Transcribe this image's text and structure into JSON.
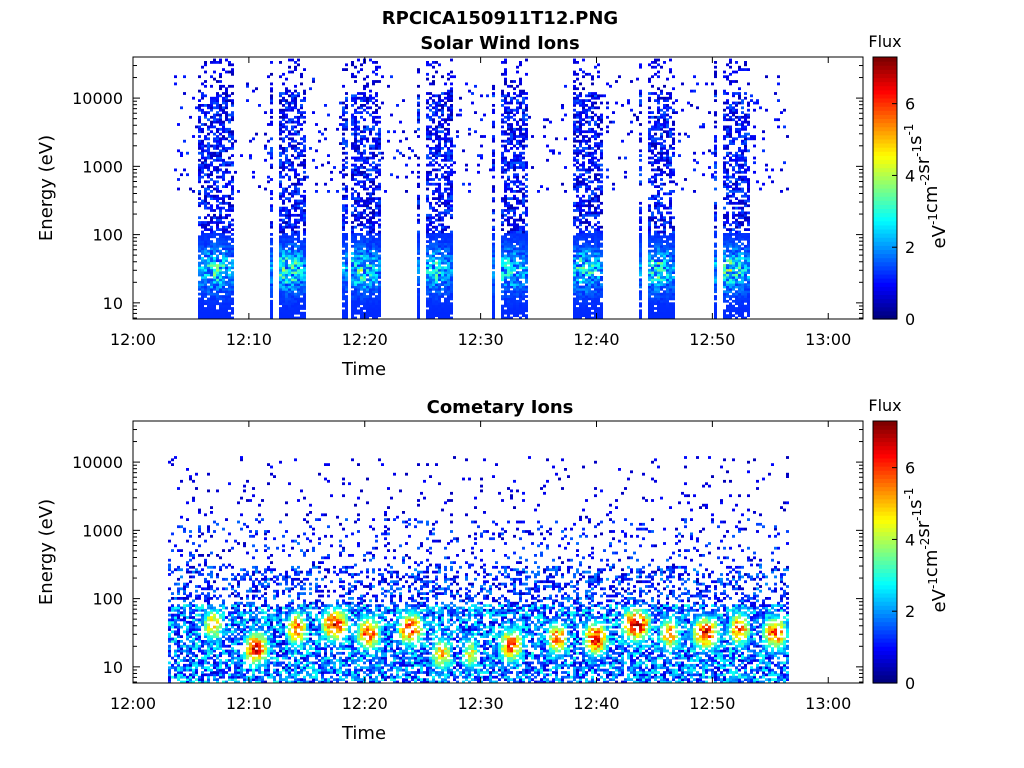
{
  "figure_title": "RPCICA150911T12.PNG",
  "colorbar": {
    "title": "Flux",
    "unit_parts": [
      [
        "eV",
        "-1"
      ],
      [
        "cm",
        "-2"
      ],
      [
        "sr",
        "-1"
      ],
      [
        "s",
        "-1"
      ]
    ],
    "range": [
      0,
      7.3
    ],
    "ticks": [
      "0",
      "2",
      "4",
      "6"
    ],
    "colormap": "jet"
  },
  "chart_data": [
    {
      "type": "heatmap",
      "title": "Solar Wind Ions",
      "xlabel": "Time",
      "ylabel": "Energy (eV)",
      "x_ticks": [
        "12:00",
        "12:10",
        "12:20",
        "12:30",
        "12:40",
        "12:50",
        "13:00"
      ],
      "y_ticks": [
        "10",
        "100",
        "1000",
        "10000"
      ],
      "y_scale": "log",
      "xlim_minutes_after_12": [
        0,
        63
      ],
      "ylim_eV": [
        5.8,
        40000
      ],
      "scan_gaps_minutes": [
        [
          12.0,
          12.4
        ],
        [
          18.3,
          18.8
        ],
        [
          24.6,
          25.1
        ],
        [
          31.0,
          31.5
        ],
        [
          37.4,
          37.9
        ],
        [
          43.8,
          44.3
        ],
        [
          50.3,
          50.8
        ]
      ],
      "bursts": [
        {
          "center": 7.0,
          "half_width": 1.6,
          "peak_energy": 30,
          "peak_flux": 4.5
        },
        {
          "center": 13.3,
          "half_width": 1.6,
          "peak_energy": 30,
          "peak_flux": 4.8
        },
        {
          "center": 19.6,
          "half_width": 1.6,
          "peak_energy": 30,
          "peak_flux": 4.5
        },
        {
          "center": 26.0,
          "half_width": 1.6,
          "peak_energy": 30,
          "peak_flux": 4.0
        },
        {
          "center": 32.4,
          "half_width": 1.6,
          "peak_energy": 30,
          "peak_flux": 4.2
        },
        {
          "center": 38.8,
          "half_width": 1.6,
          "peak_energy": 30,
          "peak_flux": 4.5
        },
        {
          "center": 45.1,
          "half_width": 1.6,
          "peak_energy": 30,
          "peak_flux": 4.5
        },
        {
          "center": 51.5,
          "half_width": 1.6,
          "peak_energy": 30,
          "peak_flux": 4.8
        }
      ]
    },
    {
      "type": "heatmap",
      "title": "Cometary Ions",
      "xlabel": "Time",
      "ylabel": "Energy (eV)",
      "x_ticks": [
        "12:00",
        "12:10",
        "12:20",
        "12:30",
        "12:40",
        "12:50",
        "13:00"
      ],
      "y_ticks": [
        "10",
        "100",
        "1000",
        "10000"
      ],
      "y_scale": "log",
      "xlim_minutes_after_12": [
        0,
        63
      ],
      "ylim_eV": [
        5.8,
        40000
      ],
      "hotspots": [
        {
          "center": 6.8,
          "half_width": 1.0,
          "peak_energy": 40,
          "peak_flux": 5.5
        },
        {
          "center": 10.5,
          "half_width": 1.2,
          "peak_energy": 18,
          "peak_flux": 7.0
        },
        {
          "center": 14.0,
          "half_width": 1.0,
          "peak_energy": 35,
          "peak_flux": 6.5
        },
        {
          "center": 17.3,
          "half_width": 1.3,
          "peak_energy": 40,
          "peak_flux": 7.0
        },
        {
          "center": 20.2,
          "half_width": 1.2,
          "peak_energy": 30,
          "peak_flux": 6.5
        },
        {
          "center": 23.8,
          "half_width": 1.2,
          "peak_energy": 35,
          "peak_flux": 7.0
        },
        {
          "center": 26.5,
          "half_width": 1.0,
          "peak_energy": 15,
          "peak_flux": 5.5
        },
        {
          "center": 29.0,
          "half_width": 0.8,
          "peak_energy": 15,
          "peak_flux": 5.0
        },
        {
          "center": 32.5,
          "half_width": 1.2,
          "peak_energy": 20,
          "peak_flux": 6.5
        },
        {
          "center": 36.5,
          "half_width": 1.0,
          "peak_energy": 25,
          "peak_flux": 6.5
        },
        {
          "center": 39.8,
          "half_width": 1.2,
          "peak_energy": 25,
          "peak_flux": 7.0
        },
        {
          "center": 43.3,
          "half_width": 1.4,
          "peak_energy": 40,
          "peak_flux": 7.3
        },
        {
          "center": 46.2,
          "half_width": 1.0,
          "peak_energy": 30,
          "peak_flux": 6.0
        },
        {
          "center": 49.3,
          "half_width": 1.3,
          "peak_energy": 30,
          "peak_flux": 7.0
        },
        {
          "center": 52.2,
          "half_width": 1.0,
          "peak_energy": 35,
          "peak_flux": 6.5
        },
        {
          "center": 55.3,
          "half_width": 1.2,
          "peak_energy": 30,
          "peak_flux": 6.5
        }
      ]
    }
  ]
}
